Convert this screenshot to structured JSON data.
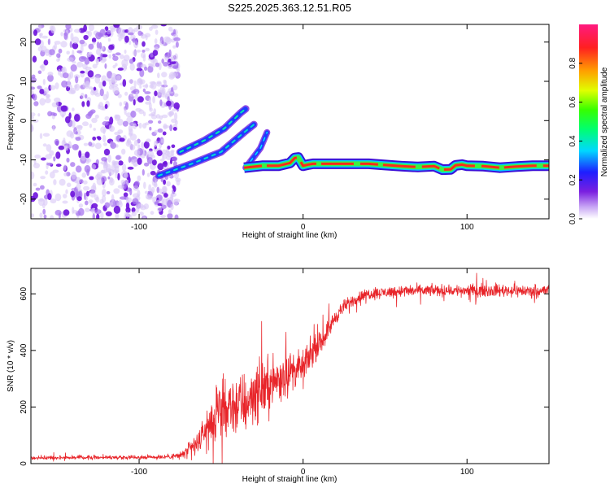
{
  "title": "S225.2025.363.12.51.R05",
  "colors": {
    "snr_line": "#e8252a",
    "axis": "#000000",
    "background": "#ffffff",
    "spectro_low": "#d9c8f6",
    "spectro_mid": "#7a1fe0"
  },
  "chart_data": [
    {
      "type": "heatmap",
      "name": "spectrogram",
      "title": "S225.2025.363.12.51.R05",
      "xlabel": "Height of straight line (km)",
      "ylabel": "Frequency (Hz)",
      "xlim": [
        -166,
        150
      ],
      "ylim": [
        -25,
        24.5
      ],
      "xticks": [
        -100,
        0,
        100
      ],
      "xtick_labels": [
        "-100",
        "0",
        "100"
      ],
      "yticks": [
        -20,
        -10,
        0,
        10,
        20
      ],
      "ytick_labels": [
        "-20",
        "-10",
        "0",
        "10",
        "20"
      ],
      "colorbar": {
        "label": "Normalized spectral amplitude",
        "range": [
          0,
          1
        ],
        "ticks": [
          0.0,
          0.2,
          0.4,
          0.6,
          0.8
        ],
        "tick_labels": [
          "0.0",
          "0.2",
          "0.4",
          "0.6",
          "0.8"
        ]
      },
      "features": {
        "noise_region_x": [
          -166,
          -80
        ],
        "lower_track": {
          "x": [
            -88,
            -68,
            -50,
            -36,
            -30
          ],
          "y": [
            -14,
            -11,
            -8,
            -3,
            -1
          ]
        },
        "upper_track": {
          "x": [
            -75,
            -60,
            -48,
            -38,
            -35
          ],
          "y": [
            -8,
            -5,
            -2,
            2,
            3
          ]
        },
        "short_track": {
          "x": [
            -35,
            -26,
            -22
          ],
          "y": [
            -12,
            -7,
            -3
          ]
        },
        "carrier": {
          "x": [
            -36,
            -25,
            -15,
            -8,
            -5,
            -3,
            0,
            3,
            6,
            10,
            20,
            40,
            50,
            60,
            70,
            80,
            85,
            90,
            93,
            97,
            100,
            110,
            120,
            130,
            140,
            150
          ],
          "y": [
            -12,
            -11.5,
            -11.5,
            -10.8,
            -9.5,
            -9.4,
            -11.5,
            -11.2,
            -11,
            -11,
            -11,
            -11,
            -11.3,
            -11.6,
            -11.8,
            -11.6,
            -12.5,
            -12.4,
            -11.4,
            -11.2,
            -11.5,
            -11.6,
            -12,
            -11.7,
            -11.5,
            -11.5
          ]
        }
      }
    },
    {
      "type": "line",
      "name": "snr",
      "title": "",
      "xlabel": "Height of straight line (km)",
      "ylabel": "SNR (10 * v/v)",
      "xlim": [
        -166,
        150
      ],
      "ylim": [
        0,
        690
      ],
      "xticks": [
        -100,
        0,
        100
      ],
      "xtick_labels": [
        "-100",
        "0",
        "100"
      ],
      "yticks": [
        0,
        200,
        400,
        600
      ],
      "ytick_labels": [
        "0",
        "200",
        "400",
        "600"
      ],
      "series": [
        {
          "name": "SNR",
          "x": [
            -166,
            -140,
            -110,
            -85,
            -75,
            -70,
            -65,
            -60,
            -55,
            -50,
            -45,
            -40,
            -35,
            -30,
            -25,
            -20,
            -15,
            -10,
            -5,
            0,
            5,
            10,
            15,
            20,
            25,
            30,
            35,
            40,
            50,
            60,
            80,
            100,
            120,
            140,
            150
          ],
          "y": [
            20,
            22,
            22,
            24,
            28,
            45,
            70,
            110,
            150,
            180,
            200,
            210,
            210,
            250,
            260,
            280,
            300,
            320,
            330,
            340,
            390,
            420,
            470,
            520,
            555,
            575,
            590,
            600,
            605,
            610,
            612,
            612,
            612,
            610,
            612
          ],
          "noise_amplitude": [
            10,
            10,
            10,
            12,
            20,
            40,
            60,
            90,
            120,
            140,
            150,
            170,
            160,
            160,
            150,
            140,
            130,
            120,
            90,
            80,
            70,
            60,
            50,
            40,
            35,
            30,
            30,
            30,
            30,
            30,
            30,
            32,
            32,
            32,
            32
          ]
        }
      ]
    }
  ]
}
